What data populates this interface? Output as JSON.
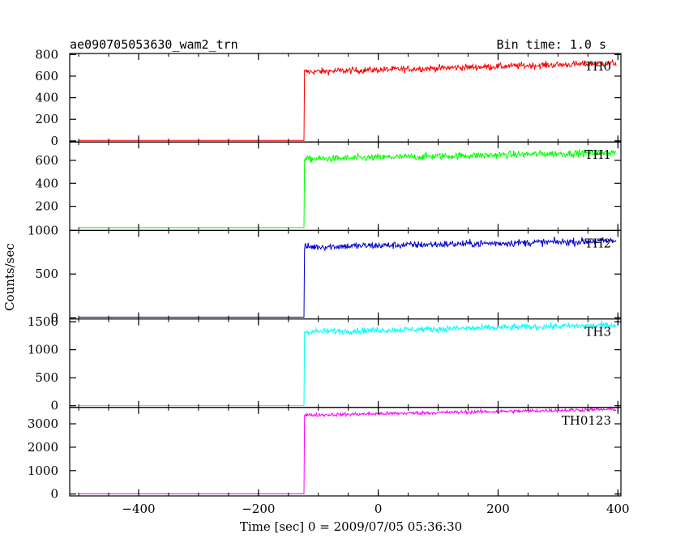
{
  "chart_data": {
    "type": "line",
    "title": "ae090705053630_wam2_trn",
    "bin_time": "Bin time: 1.0 s",
    "xlabel": "Time [sec] 0 = 2009/07/05 05:36:30",
    "ylabel": "Counts/sec",
    "xlim": [
      -515,
      405
    ],
    "x_ticks": [
      -400,
      -200,
      0,
      200,
      400
    ],
    "onset_time": -123,
    "panels": [
      {
        "name": "TH0",
        "color": "#ff0000",
        "ylim": [
          -10,
          810
        ],
        "y_ticks": [
          0,
          200,
          400,
          600,
          800
        ],
        "pre_level": 5,
        "jump_level": 640,
        "end_level": 720,
        "noise": 22
      },
      {
        "name": "TH1",
        "color": "#00ff00",
        "ylim": [
          -10,
          760
        ],
        "y_ticks": [
          200,
          400,
          600
        ],
        "pre_level": 15,
        "jump_level": 610,
        "end_level": 670,
        "noise": 22
      },
      {
        "name": "TH2",
        "color": "#0000cc",
        "ylim": [
          -15,
          1000
        ],
        "y_ticks": [
          0,
          500,
          1000
        ],
        "pre_level": 5,
        "jump_level": 810,
        "end_level": 880,
        "noise": 30
      },
      {
        "name": "TH3",
        "color": "#00ffff",
        "ylim": [
          -30,
          1550
        ],
        "y_ticks": [
          0,
          500,
          1000,
          1500
        ],
        "pre_level": 5,
        "jump_level": 1320,
        "end_level": 1440,
        "noise": 40
      },
      {
        "name": "TH0123",
        "color": "#ff00ff",
        "ylim": [
          -80,
          3700
        ],
        "y_ticks": [
          0,
          1000,
          2000,
          3000
        ],
        "pre_level": 10,
        "jump_level": 3370,
        "end_level": 3620,
        "noise": 55
      }
    ]
  }
}
